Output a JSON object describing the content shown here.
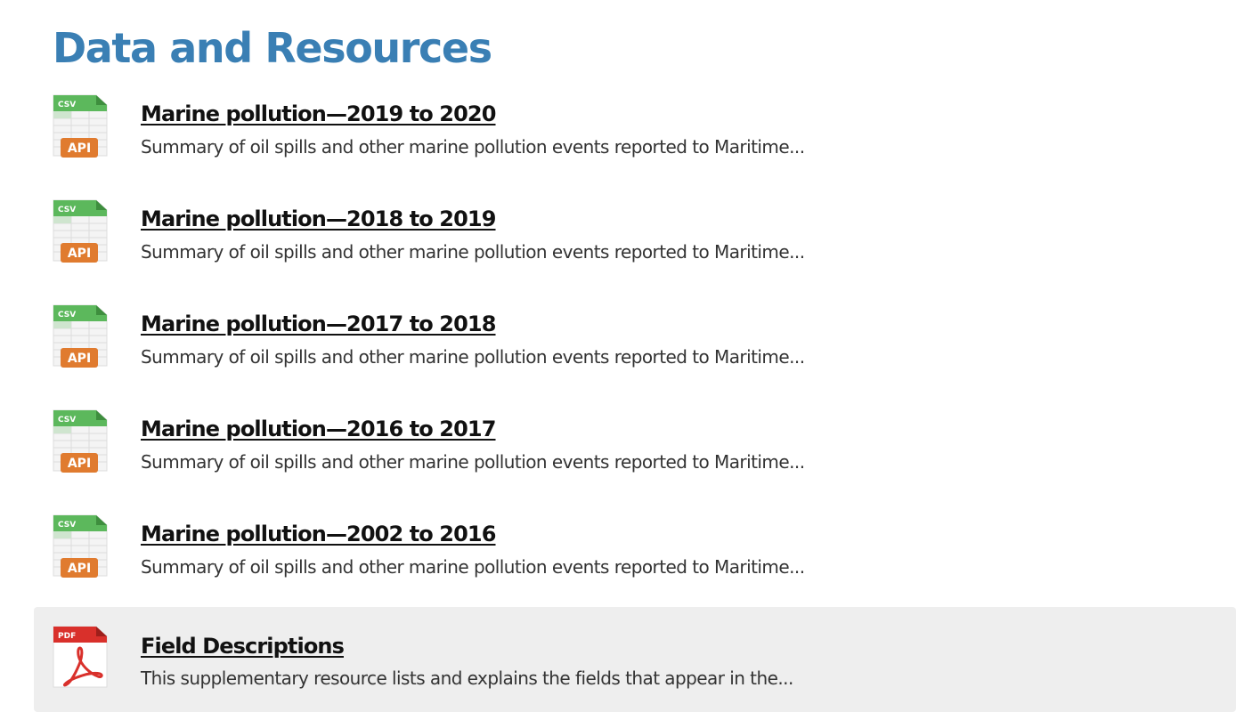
{
  "page": {
    "title": "Data and Resources"
  },
  "resources": [
    {
      "title": "Marine pollution—2019 to 2020",
      "description": "Summary of oil spills and other marine pollution events reported to Maritime...",
      "icon": "csv-api-icon",
      "format_label": "CSV",
      "badge_label": "API"
    },
    {
      "title": "Marine pollution—2018 to 2019",
      "description": "Summary of oil spills and other marine pollution events reported to Maritime...",
      "icon": "csv-api-icon",
      "format_label": "CSV",
      "badge_label": "API"
    },
    {
      "title": "Marine pollution—2017 to 2018",
      "description": "Summary of oil spills and other marine pollution events reported to Maritime...",
      "icon": "csv-api-icon",
      "format_label": "CSV",
      "badge_label": "API"
    },
    {
      "title": "Marine pollution—2016 to 2017",
      "description": "Summary of oil spills and other marine pollution events reported to Maritime...",
      "icon": "csv-api-icon",
      "format_label": "CSV",
      "badge_label": "API"
    },
    {
      "title": "Marine pollution—2002 to 2016",
      "description": "Summary of oil spills and other marine pollution events reported to Maritime...",
      "icon": "csv-api-icon",
      "format_label": "CSV",
      "badge_label": "API"
    },
    {
      "title": "Field Descriptions",
      "description": "This supplementary resource lists and explains the fields that appear in the...",
      "icon": "pdf-icon",
      "format_label": "PDF",
      "highlighted": true
    }
  ],
  "colors": {
    "title": "#3a7fb4",
    "csv_green": "#5cb85c",
    "api_orange": "#e07b2f",
    "pdf_red": "#d9302b",
    "highlight_bg": "#eeeeee"
  }
}
